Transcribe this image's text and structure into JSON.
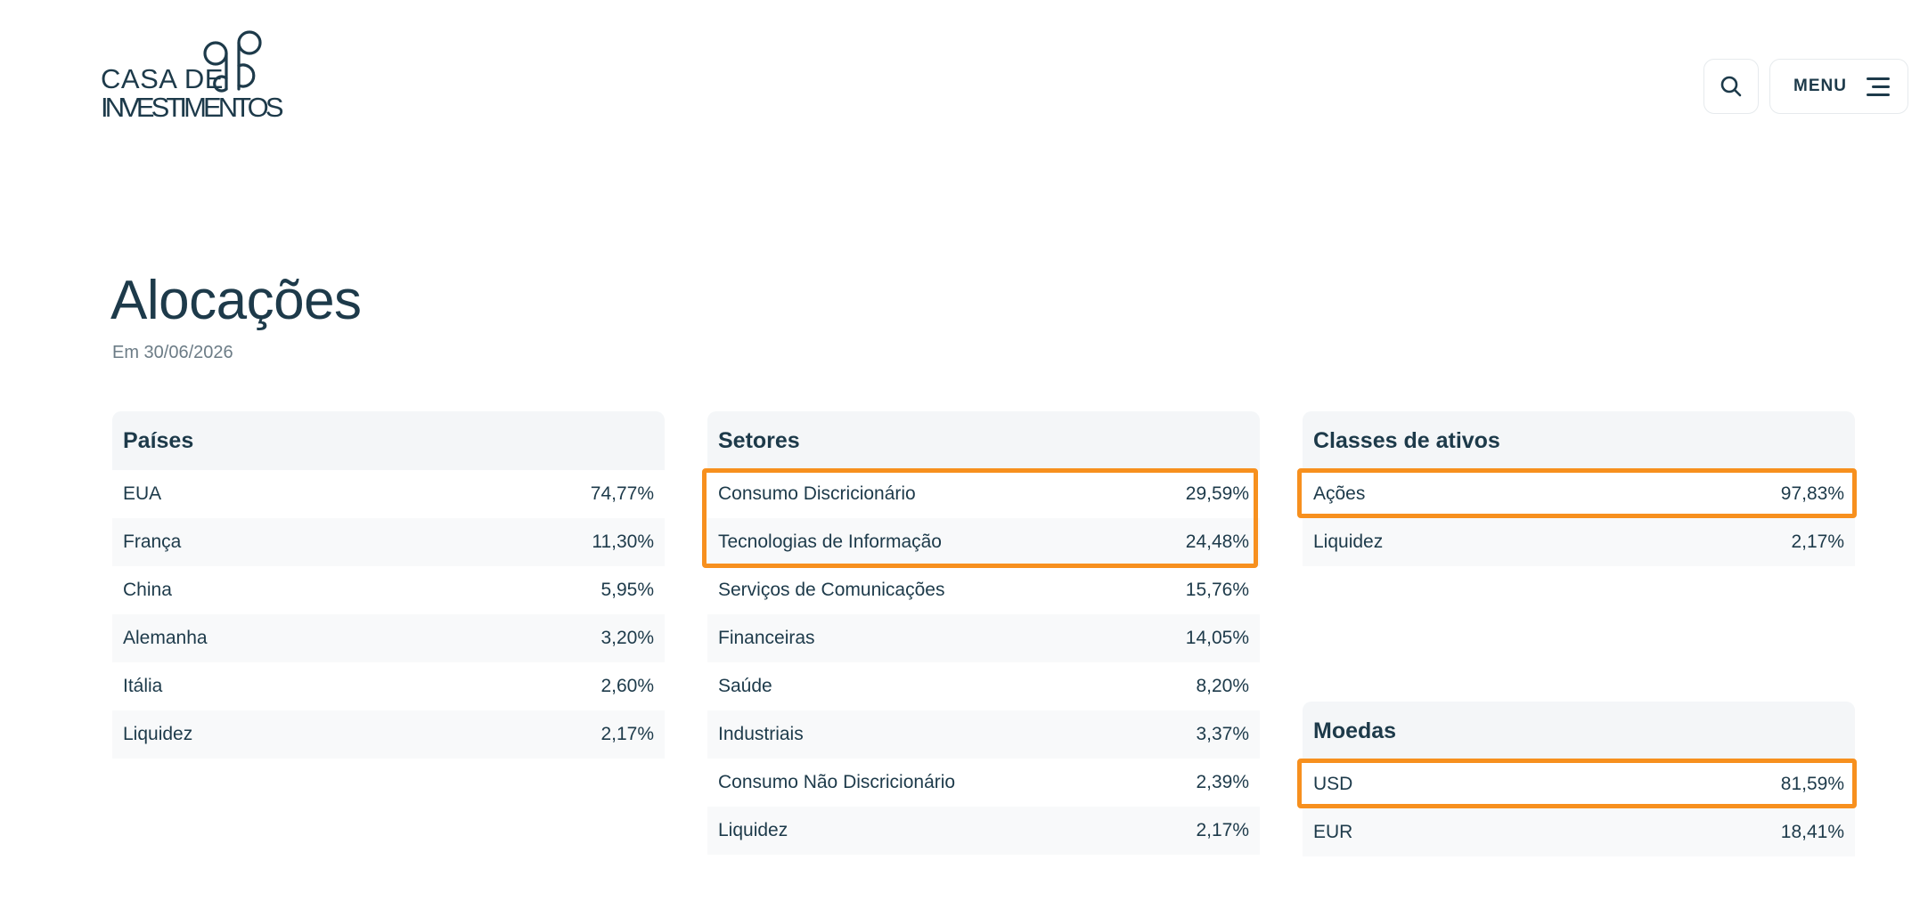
{
  "header": {
    "logo_line1": "CASA DE",
    "logo_line2": "INVESTIMENTOS",
    "menu_label": "MENU"
  },
  "page": {
    "title": "Alocações",
    "subtitle": "Em 30/06/2026"
  },
  "colors": {
    "text": "#1d3a4a",
    "highlight": "#f7901e",
    "card_header_bg": "#f4f6f8"
  },
  "icons": {
    "search": "search-icon",
    "menu": "hamburger-icon"
  },
  "paises": {
    "title": "Países",
    "rows": [
      {
        "label": "EUA",
        "value": "74,77%"
      },
      {
        "label": "França",
        "value": "11,30%"
      },
      {
        "label": "China",
        "value": "5,95%"
      },
      {
        "label": "Alemanha",
        "value": "3,20%"
      },
      {
        "label": "Itália",
        "value": "2,60%"
      },
      {
        "label": "Liquidez",
        "value": "2,17%"
      }
    ]
  },
  "setores": {
    "title": "Setores",
    "rows": [
      {
        "label": "Consumo Discricionário",
        "value": "29,59%"
      },
      {
        "label": "Tecnologias de Informação",
        "value": "24,48%"
      },
      {
        "label": "Serviços de Comunicações",
        "value": "15,76%"
      },
      {
        "label": "Financeiras",
        "value": "14,05%"
      },
      {
        "label": "Saúde",
        "value": "8,20%"
      },
      {
        "label": "Industriais",
        "value": "3,37%"
      },
      {
        "label": "Consumo Não Discricionário",
        "value": "2,39%"
      },
      {
        "label": "Liquidez",
        "value": "2,17%"
      }
    ]
  },
  "classes": {
    "title": "Classes de ativos",
    "rows": [
      {
        "label": "Ações",
        "value": "97,83%"
      },
      {
        "label": "Liquidez",
        "value": "2,17%"
      }
    ]
  },
  "moedas": {
    "title": "Moedas",
    "rows": [
      {
        "label": "USD",
        "value": "81,59%"
      },
      {
        "label": "EUR",
        "value": "18,41%"
      }
    ]
  }
}
